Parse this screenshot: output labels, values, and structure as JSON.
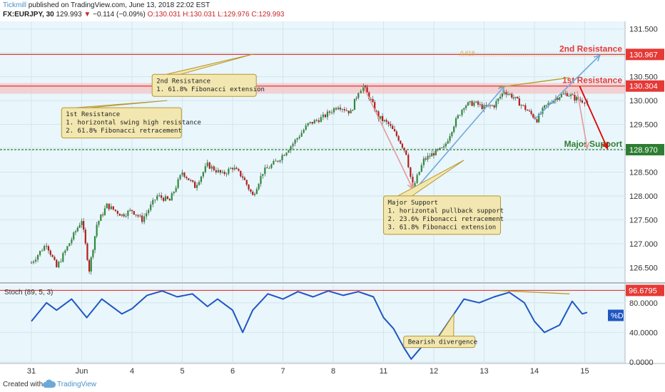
{
  "header": {
    "brand": "Tickmill",
    "published": "published on TradingView.com, June 13, 2018 22:02 EST",
    "symbol": "FX:EURJPY, 30",
    "last": "129.993",
    "change": "−0.114 (−0.09%)",
    "ohlc": "O:130.031  H:130.031  L:129.976  C:129.993"
  },
  "footer": {
    "created": "Created with",
    "brand": "TradingView"
  },
  "colors": {
    "background": "#e9f6fb",
    "resistance": "#e53935",
    "support": "#2e7d32",
    "stoch": "#1f56c2",
    "fib": "#e0a339",
    "arrow_blue": "#6fa8dc",
    "arrow_pink": "#e49a9a",
    "arrow_red": "#e00000",
    "annotation_fill": "#f2e7b0",
    "annotation_border": "#b89630"
  },
  "chart_data": [
    {
      "type": "line",
      "panel": "price",
      "ylim": [
        126.25,
        131.6
      ],
      "y_ticks": [
        "131.500",
        "131.000",
        "130.500",
        "130.000",
        "129.500",
        "129.000",
        "128.500",
        "128.000",
        "127.500",
        "127.000",
        "126.500"
      ],
      "x_ticks": [
        "31",
        "Jun",
        "4",
        "5",
        "6",
        "7",
        "8",
        "11",
        "12",
        "13",
        "14",
        "15"
      ],
      "close_series": [
        {
          "t": 0,
          "v": 126.6
        },
        {
          "t": 0.3,
          "v": 127.0
        },
        {
          "t": 0.5,
          "v": 126.5
        },
        {
          "t": 0.8,
          "v": 127.1
        },
        {
          "t": 1.0,
          "v": 127.5
        },
        {
          "t": 1.15,
          "v": 126.45
        },
        {
          "t": 1.3,
          "v": 127.4
        },
        {
          "t": 1.5,
          "v": 127.8
        },
        {
          "t": 1.8,
          "v": 127.6
        },
        {
          "t": 2.0,
          "v": 127.7
        },
        {
          "t": 2.2,
          "v": 127.5
        },
        {
          "t": 2.5,
          "v": 128.0
        },
        {
          "t": 2.75,
          "v": 127.9
        },
        {
          "t": 3.0,
          "v": 128.5
        },
        {
          "t": 3.25,
          "v": 128.2
        },
        {
          "t": 3.5,
          "v": 128.65
        },
        {
          "t": 3.8,
          "v": 128.45
        },
        {
          "t": 4.0,
          "v": 128.6
        },
        {
          "t": 4.2,
          "v": 128.4
        },
        {
          "t": 4.4,
          "v": 128.0
        },
        {
          "t": 4.6,
          "v": 128.5
        },
        {
          "t": 4.9,
          "v": 128.75
        },
        {
          "t": 5.2,
          "v": 129.1
        },
        {
          "t": 5.5,
          "v": 129.5
        },
        {
          "t": 5.8,
          "v": 129.65
        },
        {
          "t": 6.1,
          "v": 129.9
        },
        {
          "t": 6.35,
          "v": 129.75
        },
        {
          "t": 6.5,
          "v": 130.2
        },
        {
          "t": 6.6,
          "v": 130.3
        },
        {
          "t": 6.75,
          "v": 130.0
        },
        {
          "t": 6.9,
          "v": 129.65
        },
        {
          "t": 7.1,
          "v": 129.5
        },
        {
          "t": 7.3,
          "v": 129.2
        },
        {
          "t": 7.45,
          "v": 128.9
        },
        {
          "t": 7.58,
          "v": 128.15
        },
        {
          "t": 7.8,
          "v": 128.75
        },
        {
          "t": 8.0,
          "v": 128.9
        },
        {
          "t": 8.2,
          "v": 129.0
        },
        {
          "t": 8.4,
          "v": 129.5
        },
        {
          "t": 8.6,
          "v": 129.9
        },
        {
          "t": 8.8,
          "v": 129.95
        },
        {
          "t": 9.0,
          "v": 129.85
        },
        {
          "t": 9.2,
          "v": 129.9
        },
        {
          "t": 9.4,
          "v": 130.2
        },
        {
          "t": 9.55,
          "v": 130.1
        },
        {
          "t": 9.7,
          "v": 129.95
        },
        {
          "t": 9.9,
          "v": 129.75
        },
        {
          "t": 10.05,
          "v": 129.6
        },
        {
          "t": 10.2,
          "v": 129.85
        },
        {
          "t": 10.35,
          "v": 130.0
        },
        {
          "t": 10.5,
          "v": 130.1
        },
        {
          "t": 10.65,
          "v": 130.15
        },
        {
          "t": 10.8,
          "v": 130.05
        },
        {
          "t": 10.95,
          "v": 130.0
        },
        {
          "t": 11.05,
          "v": 129.99
        }
      ],
      "levels": [
        {
          "name": "2nd Resistance",
          "value": 130.967,
          "label": "130.967"
        },
        {
          "name": "1st Resistance",
          "value": 130.304,
          "label": "130.304"
        },
        {
          "name": "Major Support",
          "value": 128.97,
          "label": "128.970"
        }
      ],
      "fib_label": "0.618",
      "annotations": [
        {
          "key": "r2",
          "lines": [
            "2nd Resistance",
            "1. 61.8% Fibonacci extension"
          ]
        },
        {
          "key": "r1",
          "lines": [
            "1st Resistance",
            "1. horizontal swing high resistance",
            "2. 61.8% Fibonacci retracement"
          ]
        },
        {
          "key": "sup",
          "lines": [
            "Major Support",
            "1. horizontal pullback support",
            "2. 23.6% Fibonacci retracement",
            "3. 61.8% Fibonacci extension"
          ]
        }
      ]
    },
    {
      "type": "line",
      "panel": "stochastic",
      "title": "Stoch (89, 5, 3)",
      "ylim": [
        0,
        100
      ],
      "y_ticks": [
        "80.0000",
        "40.0000",
        "0.0000"
      ],
      "level": {
        "value": 96.6795,
        "label": "96.6795"
      },
      "series_label": "%D",
      "annotation": "Bearish divergence",
      "values": [
        {
          "t": 0,
          "v": 55
        },
        {
          "t": 0.3,
          "v": 80
        },
        {
          "t": 0.5,
          "v": 70
        },
        {
          "t": 0.8,
          "v": 85
        },
        {
          "t": 1.1,
          "v": 60
        },
        {
          "t": 1.4,
          "v": 85
        },
        {
          "t": 1.8,
          "v": 65
        },
        {
          "t": 2.0,
          "v": 72
        },
        {
          "t": 2.3,
          "v": 90
        },
        {
          "t": 2.6,
          "v": 96
        },
        {
          "t": 2.9,
          "v": 88
        },
        {
          "t": 3.2,
          "v": 92
        },
        {
          "t": 3.5,
          "v": 75
        },
        {
          "t": 3.7,
          "v": 85
        },
        {
          "t": 4.0,
          "v": 70
        },
        {
          "t": 4.2,
          "v": 40
        },
        {
          "t": 4.4,
          "v": 70
        },
        {
          "t": 4.7,
          "v": 92
        },
        {
          "t": 5.0,
          "v": 85
        },
        {
          "t": 5.3,
          "v": 95
        },
        {
          "t": 5.6,
          "v": 88
        },
        {
          "t": 5.9,
          "v": 96
        },
        {
          "t": 6.2,
          "v": 90
        },
        {
          "t": 6.5,
          "v": 95
        },
        {
          "t": 6.8,
          "v": 88
        },
        {
          "t": 7.0,
          "v": 60
        },
        {
          "t": 7.2,
          "v": 45
        },
        {
          "t": 7.4,
          "v": 20
        },
        {
          "t": 7.55,
          "v": 4
        },
        {
          "t": 7.75,
          "v": 20
        },
        {
          "t": 8.0,
          "v": 25
        },
        {
          "t": 8.3,
          "v": 55
        },
        {
          "t": 8.6,
          "v": 85
        },
        {
          "t": 8.9,
          "v": 80
        },
        {
          "t": 9.2,
          "v": 88
        },
        {
          "t": 9.5,
          "v": 94
        },
        {
          "t": 9.8,
          "v": 80
        },
        {
          "t": 10.0,
          "v": 55
        },
        {
          "t": 10.2,
          "v": 40
        },
        {
          "t": 10.5,
          "v": 50
        },
        {
          "t": 10.75,
          "v": 82
        },
        {
          "t": 10.95,
          "v": 65
        },
        {
          "t": 11.05,
          "v": 67
        }
      ]
    }
  ]
}
